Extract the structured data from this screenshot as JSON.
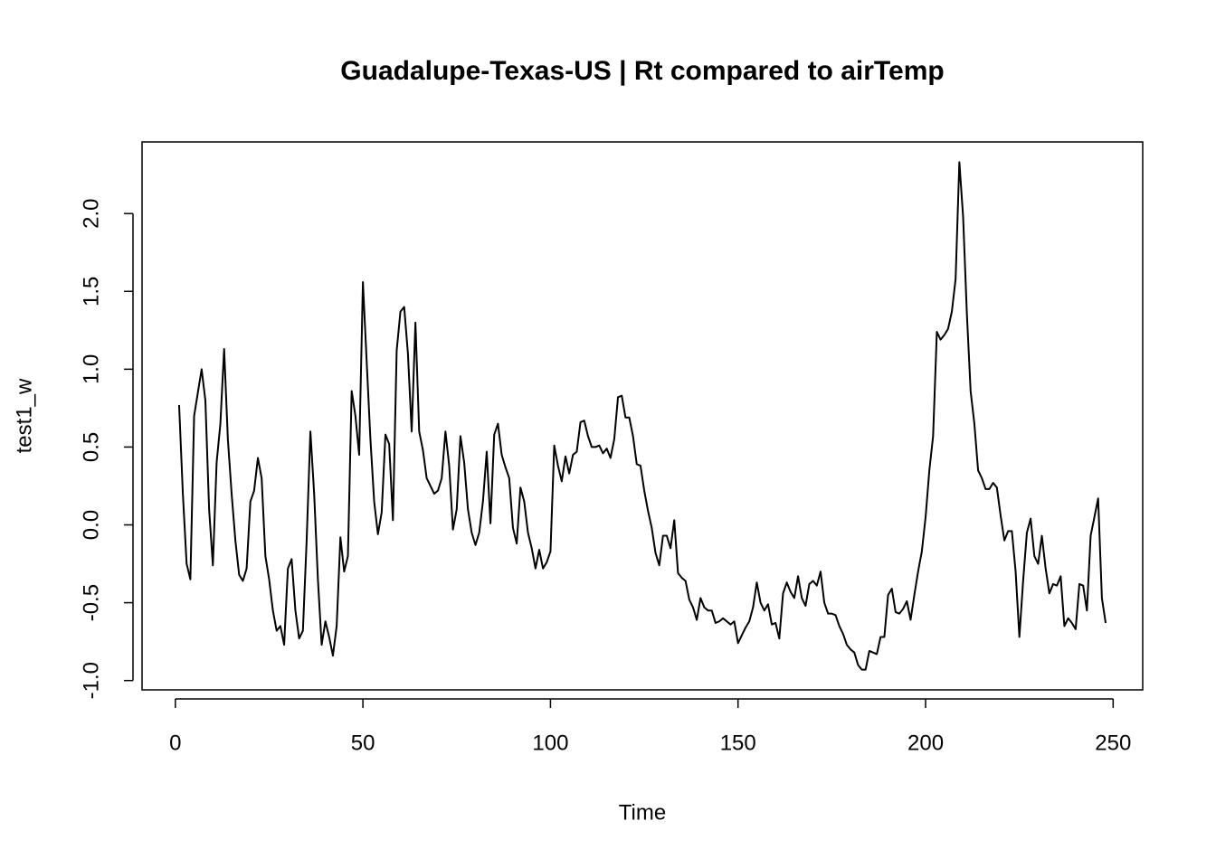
{
  "chart_data": {
    "type": "line",
    "title": "Guadalupe-Texas-US | Rt compared to airTemp",
    "x_label": "Time",
    "y_label": "test1_w",
    "color": "#000000",
    "xlim": [
      -8.88,
      257.88
    ],
    "ylim": [
      -1.06,
      2.46
    ],
    "xticks": [
      0,
      50,
      100,
      150,
      200,
      250
    ],
    "yticks": [
      {
        "value": -1,
        "label": "-1.0"
      },
      {
        "value": -0.5,
        "label": "-0.5"
      },
      {
        "value": 0,
        "label": "0.0"
      },
      {
        "value": 0.5,
        "label": "0.5"
      },
      {
        "value": 1,
        "label": "1.0"
      },
      {
        "value": 1.5,
        "label": "1.5"
      },
      {
        "value": 2,
        "label": "2.0"
      }
    ],
    "x": [
      1,
      2,
      3,
      4,
      5,
      6,
      7,
      8,
      9,
      10,
      11,
      12,
      13,
      14,
      15,
      16,
      17,
      18,
      19,
      20,
      21,
      22,
      23,
      24,
      25,
      26,
      27,
      28,
      29,
      30,
      31,
      32,
      33,
      34,
      35,
      36,
      37,
      38,
      39,
      40,
      41,
      42,
      43,
      44,
      45,
      46,
      47,
      48,
      49,
      50,
      51,
      52,
      53,
      54,
      55,
      56,
      57,
      58,
      59,
      60,
      61,
      62,
      63,
      64,
      65,
      66,
      67,
      68,
      69,
      70,
      71,
      72,
      73,
      74,
      75,
      76,
      77,
      78,
      79,
      80,
      81,
      82,
      83,
      84,
      85,
      86,
      87,
      88,
      89,
      90,
      91,
      92,
      93,
      94,
      95,
      96,
      97,
      98,
      99,
      100,
      101,
      102,
      103,
      104,
      105,
      106,
      107,
      108,
      109,
      110,
      111,
      112,
      113,
      114,
      115,
      116,
      117,
      118,
      119,
      120,
      121,
      122,
      123,
      124,
      125,
      126,
      127,
      128,
      129,
      130,
      131,
      132,
      133,
      134,
      135,
      136,
      137,
      138,
      139,
      140,
      141,
      142,
      143,
      144,
      145,
      146,
      147,
      148,
      149,
      150,
      151,
      152,
      153,
      154,
      155,
      156,
      157,
      158,
      159,
      160,
      161,
      162,
      163,
      164,
      165,
      166,
      167,
      168,
      169,
      170,
      171,
      172,
      173,
      174,
      175,
      176,
      177,
      178,
      179,
      180,
      181,
      182,
      183,
      184,
      185,
      186,
      187,
      188,
      189,
      190,
      191,
      192,
      193,
      194,
      195,
      196,
      197,
      198,
      199,
      200,
      201,
      202,
      203,
      204,
      205,
      206,
      207,
      208,
      209,
      210,
      211,
      212,
      213,
      214,
      215,
      216,
      217,
      218,
      219,
      220,
      221,
      222,
      223,
      224,
      225,
      226,
      227,
      228,
      229,
      230,
      231,
      232,
      233,
      234,
      235,
      236,
      237,
      238,
      239,
      240,
      241,
      242,
      243,
      244,
      245,
      246,
      247,
      248
    ],
    "values": [
      0.77,
      0.2,
      -0.25,
      -0.35,
      0.7,
      0.85,
      1.0,
      0.8,
      0.1,
      -0.26,
      0.4,
      0.65,
      1.13,
      0.55,
      0.2,
      -0.1,
      -0.32,
      -0.36,
      -0.28,
      0.15,
      0.22,
      0.43,
      0.3,
      -0.2,
      -0.35,
      -0.55,
      -0.68,
      -0.65,
      -0.77,
      -0.28,
      -0.22,
      -0.55,
      -0.73,
      -0.68,
      -0.1,
      0.6,
      0.2,
      -0.35,
      -0.77,
      -0.62,
      -0.72,
      -0.84,
      -0.65,
      -0.08,
      -0.3,
      -0.2,
      0.86,
      0.7,
      0.45,
      1.56,
      1.05,
      0.55,
      0.15,
      -0.06,
      0.08,
      0.58,
      0.52,
      0.03,
      1.12,
      1.37,
      1.4,
      1.1,
      0.6,
      1.3,
      0.6,
      0.48,
      0.3,
      0.25,
      0.2,
      0.22,
      0.3,
      0.6,
      0.38,
      -0.03,
      0.1,
      0.57,
      0.4,
      0.1,
      -0.05,
      -0.13,
      -0.05,
      0.15,
      0.47,
      0.01,
      0.58,
      0.65,
      0.45,
      0.37,
      0.3,
      -0.02,
      -0.12,
      0.24,
      0.15,
      -0.05,
      -0.15,
      -0.28,
      -0.16,
      -0.28,
      -0.24,
      -0.17,
      0.51,
      0.38,
      0.28,
      0.44,
      0.33,
      0.45,
      0.47,
      0.66,
      0.67,
      0.57,
      0.5,
      0.5,
      0.51,
      0.46,
      0.49,
      0.43,
      0.55,
      0.82,
      0.83,
      0.69,
      0.69,
      0.57,
      0.39,
      0.38,
      0.22,
      0.09,
      -0.02,
      -0.18,
      -0.26,
      -0.07,
      -0.07,
      -0.15,
      0.03,
      -0.31,
      -0.34,
      -0.36,
      -0.48,
      -0.53,
      -0.61,
      -0.47,
      -0.53,
      -0.55,
      -0.55,
      -0.63,
      -0.62,
      -0.6,
      -0.62,
      -0.64,
      -0.62,
      -0.76,
      -0.71,
      -0.66,
      -0.62,
      -0.53,
      -0.37,
      -0.5,
      -0.55,
      -0.51,
      -0.64,
      -0.63,
      -0.73,
      -0.44,
      -0.37,
      -0.43,
      -0.47,
      -0.33,
      -0.47,
      -0.52,
      -0.38,
      -0.36,
      -0.39,
      -0.3,
      -0.5,
      -0.57,
      -0.57,
      -0.58,
      -0.65,
      -0.7,
      -0.77,
      -0.8,
      -0.82,
      -0.9,
      -0.93,
      -0.93,
      -0.81,
      -0.82,
      -0.83,
      -0.72,
      -0.72,
      -0.45,
      -0.41,
      -0.56,
      -0.57,
      -0.54,
      -0.49,
      -0.61,
      -0.45,
      -0.3,
      -0.17,
      0.05,
      0.35,
      0.57,
      1.24,
      1.19,
      1.22,
      1.26,
      1.37,
      1.58,
      2.33,
      1.98,
      1.36,
      0.86,
      0.65,
      0.35,
      0.3,
      0.23,
      0.23,
      0.27,
      0.24,
      0.06,
      -0.1,
      -0.04,
      -0.04,
      -0.3,
      -0.72,
      -0.36,
      -0.05,
      0.04,
      -0.2,
      -0.25,
      -0.07,
      -0.28,
      -0.44,
      -0.38,
      -0.39,
      -0.33,
      -0.65,
      -0.6,
      -0.63,
      -0.67,
      -0.38,
      -0.39,
      -0.55,
      -0.07,
      0.05,
      0.17,
      -0.47,
      -0.63
    ]
  }
}
